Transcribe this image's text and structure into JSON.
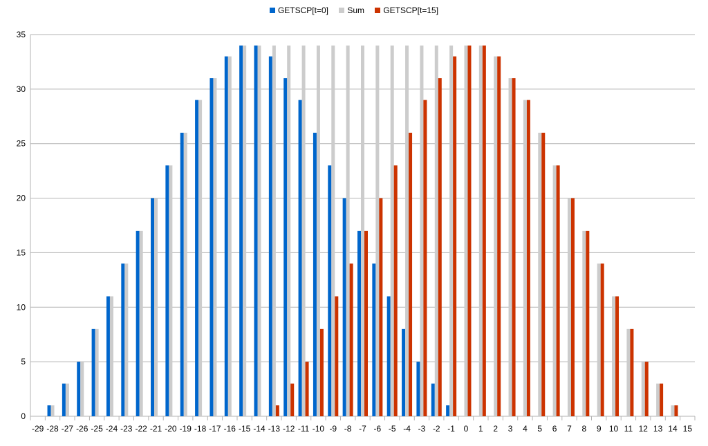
{
  "chart_data": {
    "type": "bar",
    "categories": [
      "-29",
      "-28",
      "-27",
      "-26",
      "-25",
      "-24",
      "-23",
      "-22",
      "-21",
      "-20",
      "-19",
      "-18",
      "-17",
      "-16",
      "-15",
      "-14",
      "-13",
      "-12",
      "-11",
      "-10",
      "-9",
      "-8",
      "-7",
      "-6",
      "-5",
      "-4",
      "-3",
      "-2",
      "-1",
      "0",
      "1",
      "2",
      "3",
      "4",
      "5",
      "6",
      "7",
      "8",
      "9",
      "10",
      "11",
      "12",
      "13",
      "14",
      "15"
    ],
    "series": [
      {
        "name": "GETSCP[t=0]",
        "color": "#0066cc",
        "values": [
          0,
          1,
          3,
          5,
          8,
          11,
          14,
          17,
          20,
          23,
          26,
          29,
          31,
          33,
          34,
          34,
          33,
          31,
          29,
          26,
          23,
          20,
          17,
          14,
          11,
          8,
          5,
          3,
          1,
          0,
          0,
          0,
          0,
          0,
          0,
          0,
          0,
          0,
          0,
          0,
          0,
          0,
          0,
          0,
          0
        ]
      },
      {
        "name": "Sum",
        "color": "#cccccc",
        "values": [
          0,
          1,
          3,
          5,
          8,
          11,
          14,
          17,
          20,
          23,
          26,
          29,
          31,
          33,
          34,
          34,
          34,
          34,
          34,
          34,
          34,
          34,
          34,
          34,
          34,
          34,
          34,
          34,
          34,
          34,
          34,
          33,
          31,
          29,
          26,
          23,
          20,
          17,
          14,
          11,
          8,
          5,
          3,
          1,
          0
        ]
      },
      {
        "name": "GETSCP[t=15]",
        "color": "#cc3300",
        "values": [
          0,
          0,
          0,
          0,
          0,
          0,
          0,
          0,
          0,
          0,
          0,
          0,
          0,
          0,
          0,
          0,
          1,
          3,
          5,
          8,
          11,
          14,
          17,
          20,
          23,
          26,
          29,
          31,
          33,
          34,
          34,
          33,
          31,
          29,
          26,
          23,
          20,
          17,
          14,
          11,
          8,
          5,
          3,
          1,
          0
        ]
      }
    ],
    "ylim": [
      0,
      35
    ],
    "yticks": [
      "0",
      "5",
      "10",
      "15",
      "20",
      "25",
      "30",
      "35"
    ],
    "grid": true,
    "legend_position": "top-center"
  }
}
